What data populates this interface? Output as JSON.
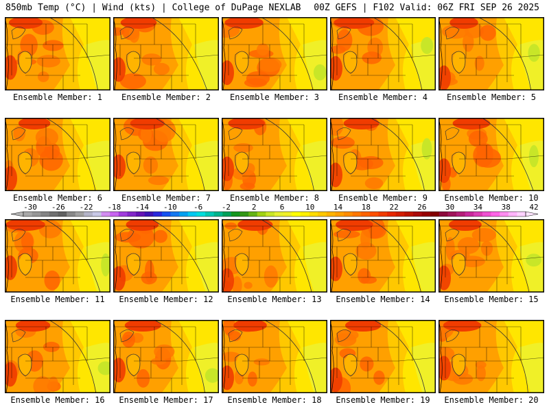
{
  "header": {
    "left": "850mb Temp (°C) | Wind (kts) | College of DuPage NEXLAB",
    "right": "00Z GEFS | F102 Valid: 06Z FRI SEP 26 2025"
  },
  "panels": [
    {
      "caption": "Ensemble Member: 1"
    },
    {
      "caption": "Ensemble Member: 2"
    },
    {
      "caption": "Ensemble Member: 3"
    },
    {
      "caption": "Ensemble Member: 4"
    },
    {
      "caption": "Ensemble Member: 5"
    },
    {
      "caption": "Ensemble Member: 6"
    },
    {
      "caption": "Ensemble Member: 7"
    },
    {
      "caption": "Ensemble Member: 8"
    },
    {
      "caption": "Ensemble Member: 9"
    },
    {
      "caption": "Ensemble Member: 10"
    },
    {
      "caption": "Ensemble Member: 11"
    },
    {
      "caption": "Ensemble Member: 12"
    },
    {
      "caption": "Ensemble Member: 13"
    },
    {
      "caption": "Ensemble Member: 14"
    },
    {
      "caption": "Ensemble Member: 15"
    },
    {
      "caption": "Ensemble Member: 16"
    },
    {
      "caption": "Ensemble Member: 17"
    },
    {
      "caption": "Ensemble Member: 18"
    },
    {
      "caption": "Ensemble Member: 19"
    },
    {
      "caption": "Ensemble Member: 20"
    }
  ],
  "colorbar": {
    "labels": [
      "-30",
      "-26",
      "-22",
      "-18",
      "-14",
      "-10",
      "-6",
      "-2",
      "2",
      "6",
      "10",
      "14",
      "18",
      "22",
      "26",
      "30",
      "34",
      "38",
      "42"
    ],
    "colors": [
      "#a8a8a8",
      "#969696",
      "#848484",
      "#707070",
      "#606060",
      "#888888",
      "#a0a0a0",
      "#b4b4c8",
      "#c8c8e6",
      "#d28cf0",
      "#c864f0",
      "#a03cdc",
      "#8228c8",
      "#6414b4",
      "#3c14b4",
      "#2828dc",
      "#1450f0",
      "#1478f0",
      "#00a0f0",
      "#00c8f0",
      "#00dcdc",
      "#00c8b4",
      "#00b48c",
      "#00a05a",
      "#14961e",
      "#329614",
      "#64b414",
      "#a0d214",
      "#c8e628",
      "#e6f032",
      "#f0f028",
      "#ffff00",
      "#fff000",
      "#ffdc00",
      "#ffc800",
      "#ffb400",
      "#ffa000",
      "#ff8c00",
      "#ff7800",
      "#ff6400",
      "#ff5000",
      "#f03c00",
      "#e62800",
      "#d21e00",
      "#be1400",
      "#aa0a0a",
      "#960000",
      "#820000",
      "#8c0a3c",
      "#a0145a",
      "#b41e78",
      "#c8289b",
      "#dc3cb4",
      "#f050d2",
      "#ff64e6",
      "#ff8cf0",
      "#ffb4fa",
      "#ffd2ff"
    ]
  }
}
